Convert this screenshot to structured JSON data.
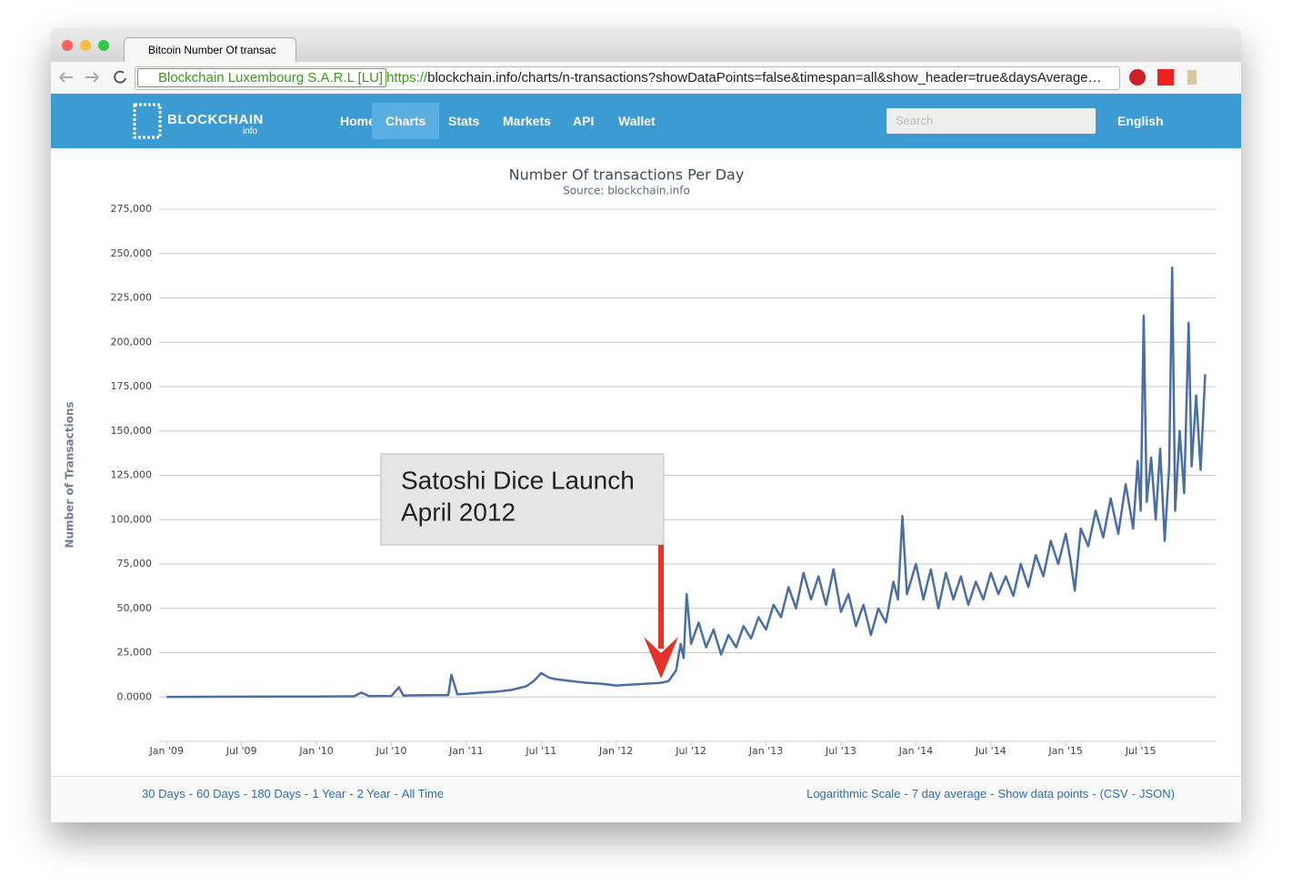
{
  "browser": {
    "tab_title": "Bitcoin Number Of transac",
    "identity": "Blockchain Luxembourg S.A.R.L [LU]",
    "url_scheme": "https://",
    "url_rest": "blockchain.info/charts/n-transactions?showDataPoints=false&timespan=all&show_header=true&daysAverage…"
  },
  "nav": {
    "logo": "BLOCKCHAIN",
    "logo_sub": "info",
    "links": [
      "Home",
      "Charts",
      "Stats",
      "Markets",
      "API",
      "Wallet"
    ],
    "search": "Search",
    "language": "English"
  },
  "footer": {
    "separator": "-",
    "left": [
      "30 Days",
      "60 Days",
      "180 Days",
      "1 Year",
      "2 Year",
      "All Time"
    ],
    "right": [
      "Logarithmic Scale",
      "7 day average",
      "Show data points",
      "(CSV",
      "JSON)"
    ]
  },
  "chart_data": {
    "type": "line",
    "title": "Number Of transactions Per Day",
    "subtitle": "Source: blockchain.info",
    "y_label": "Number of Transactions",
    "annotation": [
      "Satoshi Dice Launch",
      "April 2012"
    ],
    "color": "#4a6fa5",
    "grid": true,
    "xlim": [
      2008.95,
      2016.0
    ],
    "xticks": [
      {
        "value": 2009.0,
        "label": "Jan '09"
      },
      {
        "value": 2009.5,
        "label": "Jul '09"
      },
      {
        "value": 2010.0,
        "label": "Jan '10"
      },
      {
        "value": 2010.5,
        "label": "Jul '10"
      },
      {
        "value": 2011.0,
        "label": "Jan '11"
      },
      {
        "value": 2011.5,
        "label": "Jul '11"
      },
      {
        "value": 2012.0,
        "label": "Jan '12"
      },
      {
        "value": 2012.5,
        "label": "Jul '12"
      },
      {
        "value": 2013.0,
        "label": "Jan '13"
      },
      {
        "value": 2013.5,
        "label": "Jul '13"
      },
      {
        "value": 2014.0,
        "label": "Jan '14"
      },
      {
        "value": 2014.5,
        "label": "Jul '14"
      },
      {
        "value": 2015.0,
        "label": "Jan '15"
      },
      {
        "value": 2015.5,
        "label": "Jul '15"
      }
    ],
    "ylim": [
      -25000,
      275000
    ],
    "yticks": [
      {
        "value": 0,
        "label": "0.0000"
      },
      {
        "value": 25000,
        "label": "25,000"
      },
      {
        "value": 50000,
        "label": "50,000"
      },
      {
        "value": 75000,
        "label": "75,000"
      },
      {
        "value": 100000,
        "label": "100,000"
      },
      {
        "value": 125000,
        "label": "125,000"
      },
      {
        "value": 150000,
        "label": "150,000"
      },
      {
        "value": 175000,
        "label": "175,000"
      },
      {
        "value": 200000,
        "label": "200,000"
      },
      {
        "value": 225000,
        "label": "225,000"
      },
      {
        "value": 250000,
        "label": "250,000"
      },
      {
        "value": 275000,
        "label": "275,000"
      }
    ],
    "x": [
      2009.0,
      2009.25,
      2009.5,
      2009.75,
      2010.0,
      2010.25,
      2010.3,
      2010.35,
      2010.5,
      2010.55,
      2010.58,
      2010.62,
      2010.75,
      2010.88,
      2010.9,
      2010.94,
      2011.0,
      2011.1,
      2011.2,
      2011.3,
      2011.4,
      2011.45,
      2011.5,
      2011.55,
      2011.6,
      2011.7,
      2011.8,
      2011.9,
      2012.0,
      2012.1,
      2012.2,
      2012.3,
      2012.35,
      2012.4,
      2012.43,
      2012.45,
      2012.47,
      2012.5,
      2012.55,
      2012.6,
      2012.65,
      2012.7,
      2012.75,
      2012.8,
      2012.85,
      2012.9,
      2012.95,
      2013.0,
      2013.05,
      2013.1,
      2013.15,
      2013.2,
      2013.25,
      2013.3,
      2013.35,
      2013.4,
      2013.45,
      2013.5,
      2013.55,
      2013.6,
      2013.65,
      2013.7,
      2013.75,
      2013.8,
      2013.85,
      2013.88,
      2013.91,
      2013.94,
      2014.0,
      2014.05,
      2014.1,
      2014.15,
      2014.2,
      2014.25,
      2014.3,
      2014.35,
      2014.4,
      2014.45,
      2014.5,
      2014.55,
      2014.6,
      2014.65,
      2014.7,
      2014.75,
      2014.8,
      2014.85,
      2014.9,
      2014.95,
      2015.0,
      2015.03,
      2015.06,
      2015.1,
      2015.15,
      2015.2,
      2015.25,
      2015.3,
      2015.35,
      2015.4,
      2015.45,
      2015.48,
      2015.5,
      2015.52,
      2015.54,
      2015.57,
      2015.6,
      2015.63,
      2015.66,
      2015.69,
      2015.71,
      2015.73,
      2015.76,
      2015.79,
      2015.82,
      2015.84,
      2015.87,
      2015.9,
      2015.93
    ],
    "values": [
      100,
      150,
      200,
      250,
      300,
      400,
      2500,
      500,
      600,
      5500,
      800,
      900,
      1000,
      1100,
      12500,
      1500,
      1800,
      2500,
      3000,
      4000,
      6000,
      9000,
      13500,
      11000,
      10000,
      9000,
      8000,
      7500,
      6500,
      7000,
      7500,
      8000,
      9000,
      15000,
      30000,
      22000,
      58000,
      30000,
      42000,
      28000,
      38000,
      24000,
      35000,
      28000,
      40000,
      33000,
      45000,
      38000,
      52000,
      45000,
      62000,
      50000,
      70000,
      55000,
      68000,
      52000,
      72000,
      48000,
      58000,
      40000,
      52000,
      35000,
      50000,
      42000,
      65000,
      55000,
      102000,
      58000,
      75000,
      55000,
      72000,
      50000,
      70000,
      55000,
      68000,
      52000,
      65000,
      55000,
      70000,
      58000,
      68000,
      57000,
      75000,
      62000,
      80000,
      68000,
      88000,
      75000,
      92000,
      78000,
      60000,
      95000,
      85000,
      105000,
      90000,
      112000,
      92000,
      120000,
      95000,
      133000,
      105000,
      215000,
      110000,
      135000,
      100000,
      140000,
      88000,
      130000,
      242000,
      105000,
      150000,
      115000,
      211000,
      130000,
      170000,
      128000,
      182000
    ]
  }
}
